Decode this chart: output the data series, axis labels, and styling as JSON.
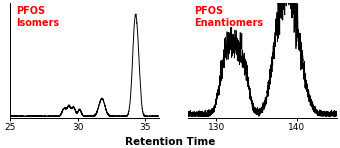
{
  "title_left": "PFOS\nIsomers",
  "title_right": "PFOS\nEnantiomers",
  "title_color": "#FF0000",
  "xlabel": "Retention Time",
  "background_color": "#ffffff",
  "left_xlim": [
    25,
    36
  ],
  "right_xlim": [
    126.5,
    145
  ],
  "left_xticks": [
    25,
    30,
    35
  ],
  "right_xticks": [
    130,
    140
  ],
  "figsize": [
    3.4,
    1.48
  ],
  "dpi": 100
}
